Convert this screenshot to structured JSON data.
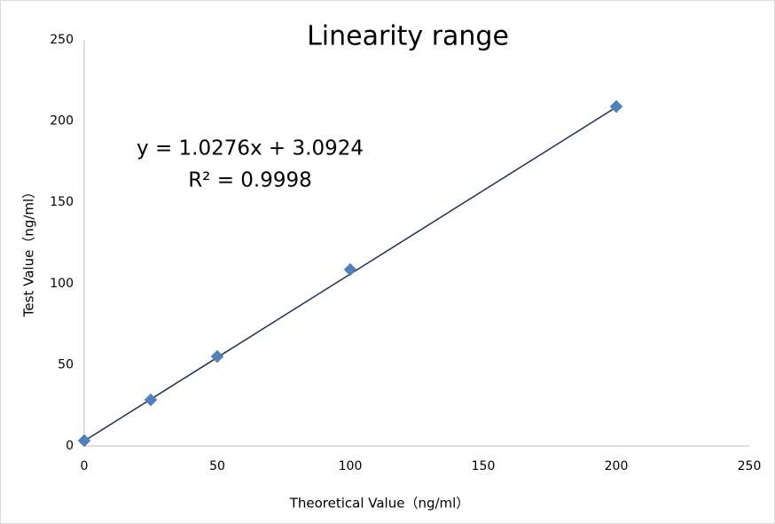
{
  "chart_data": {
    "type": "scatter",
    "title": "Linearity range",
    "x_label": "Theoretical Value（ng/ml）",
    "y_label": "Test Value（ng/ml）",
    "x": [
      0,
      25,
      50,
      100,
      200
    ],
    "values": [
      3.3,
      28.4,
      55.1,
      108.6,
      209
    ],
    "color": "#4f81bd",
    "xlim": [
      0,
      250
    ],
    "xticks": [
      0,
      50,
      100,
      150,
      200,
      250
    ],
    "ylim": [
      0,
      250
    ],
    "yticks": [
      0,
      50,
      100,
      150,
      200,
      250
    ],
    "grid": false,
    "trendline": {
      "slope": 1.0276,
      "intercept": 3.0924,
      "color": "#1f3050",
      "equation": "y = 1.0276x + 3.0924",
      "r2_label": "R² = 0.9998"
    }
  }
}
